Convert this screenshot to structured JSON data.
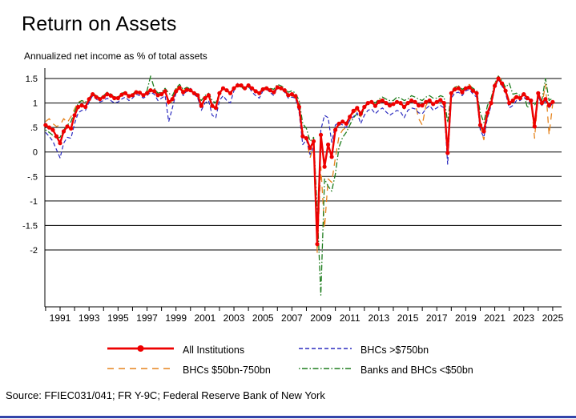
{
  "page": {
    "title": "Return on Assets",
    "subtitle": "Annualized net income as % of total assets",
    "source": "Source: FFIEC031/041; FR Y-9C; Federal Reserve Bank of New York",
    "footer_bar_color": "#3344aa"
  },
  "chart_data": {
    "type": "line",
    "title": "Return on Assets",
    "subtitle": "Annualized net income as % of total assets",
    "grid": "horizontal-black-lines",
    "legend_position": "bottom",
    "x_start": 1990.0,
    "x_step": 0.25,
    "x_axis": {
      "range": [
        1989.95,
        2025.65
      ],
      "tick_start": 1990,
      "tick_end": 2025,
      "label_years": [
        "1991",
        "1993",
        "1995",
        "1997",
        "1999",
        "2001",
        "2003",
        "2005",
        "2007",
        "2009",
        "2011",
        "2013",
        "2015",
        "2017",
        "2019",
        "2021",
        "2023",
        "2025"
      ]
    },
    "y_axis": {
      "unit": "% of total assets, annualized",
      "drawn_min": -3.15,
      "drawn_max": 1.71,
      "ticks": [
        {
          "v": 1.5,
          "label": "1.5"
        },
        {
          "v": 1.0,
          "label": "1"
        },
        {
          "v": 0.5,
          "label": ".5"
        },
        {
          "v": 0.0,
          "label": "0"
        },
        {
          "v": -0.5,
          "label": "-.5"
        },
        {
          "v": -1.0,
          "label": "-1"
        },
        {
          "v": -1.5,
          "label": "-1.5"
        },
        {
          "v": -2.0,
          "label": "-2"
        }
      ]
    },
    "series": [
      {
        "name": "All Institutions",
        "color": "#ee0000",
        "style": "solid-marker",
        "values": [
          0.55,
          0.5,
          0.45,
          0.32,
          0.18,
          0.42,
          0.52,
          0.48,
          0.75,
          0.92,
          0.95,
          0.92,
          1.08,
          1.18,
          1.12,
          1.08,
          1.12,
          1.18,
          1.15,
          1.1,
          1.1,
          1.17,
          1.2,
          1.14,
          1.16,
          1.22,
          1.21,
          1.16,
          1.2,
          1.26,
          1.24,
          1.16,
          1.18,
          1.24,
          1.02,
          1.08,
          1.24,
          1.31,
          1.22,
          1.27,
          1.26,
          1.2,
          1.16,
          0.94,
          1.1,
          1.16,
          0.94,
          0.9,
          1.2,
          1.3,
          1.26,
          1.2,
          1.3,
          1.36,
          1.36,
          1.3,
          1.36,
          1.3,
          1.24,
          1.2,
          1.28,
          1.3,
          1.26,
          1.22,
          1.32,
          1.3,
          1.26,
          1.16,
          1.18,
          1.14,
          0.92,
          0.32,
          0.28,
          0.08,
          0.22,
          -1.88,
          0.35,
          -0.3,
          0.15,
          -0.1,
          0.45,
          0.58,
          0.62,
          0.58,
          0.72,
          0.84,
          0.9,
          0.78,
          0.92,
          1.0,
          1.02,
          0.94,
          1.02,
          1.05,
          1.0,
          0.95,
          0.98,
          1.02,
          1.0,
          0.92,
          1.0,
          1.05,
          1.02,
          0.95,
          0.95,
          1.02,
          1.05,
          0.98,
          1.02,
          1.06,
          1.0,
          -0.02,
          1.2,
          1.28,
          1.3,
          1.22,
          1.3,
          1.32,
          1.25,
          1.2,
          0.55,
          0.42,
          0.8,
          1.0,
          1.35,
          1.5,
          1.4,
          1.25,
          1.0,
          1.05,
          1.12,
          1.1,
          1.18,
          1.1,
          1.05,
          0.52,
          1.2,
          1.0,
          1.08,
          0.95,
          1.02
        ]
      },
      {
        "name": "BHCs >$750bn",
        "color": "#2b2bbf",
        "style": "dashed",
        "values": [
          0.4,
          0.32,
          0.22,
          0.05,
          -0.12,
          0.18,
          0.3,
          0.28,
          0.58,
          0.8,
          0.85,
          0.85,
          1.02,
          1.15,
          1.08,
          1.02,
          1.05,
          1.1,
          1.05,
          1.0,
          1.02,
          1.08,
          1.12,
          1.05,
          1.1,
          1.18,
          1.15,
          1.1,
          1.15,
          1.22,
          1.18,
          1.05,
          1.1,
          1.15,
          0.62,
          0.9,
          1.2,
          1.35,
          1.15,
          1.25,
          1.3,
          1.18,
          1.1,
          0.85,
          1.0,
          1.05,
          0.75,
          0.7,
          1.05,
          1.15,
          1.05,
          1.0,
          1.25,
          1.4,
          1.35,
          1.3,
          1.35,
          1.22,
          1.15,
          1.1,
          1.25,
          1.28,
          1.22,
          1.15,
          1.32,
          1.3,
          1.22,
          1.1,
          1.12,
          1.1,
          0.8,
          0.15,
          0.25,
          -0.05,
          0.1,
          -1.55,
          0.45,
          0.75,
          0.7,
          0.2,
          0.55,
          0.6,
          0.55,
          0.5,
          0.65,
          0.72,
          0.8,
          0.58,
          0.75,
          0.85,
          0.88,
          0.78,
          0.85,
          0.9,
          0.82,
          0.75,
          0.8,
          0.85,
          0.82,
          0.7,
          0.85,
          0.9,
          0.88,
          0.8,
          0.78,
          0.88,
          0.95,
          0.85,
          0.9,
          0.95,
          0.9,
          -0.25,
          1.1,
          1.2,
          1.22,
          1.15,
          1.25,
          1.28,
          1.18,
          1.12,
          0.45,
          0.3,
          0.7,
          0.95,
          1.3,
          1.48,
          1.35,
          1.2,
          0.9,
          0.95,
          1.05,
          1.05,
          1.12,
          1.05,
          1.0,
          0.6,
          1.15,
          0.95,
          1.05,
          0.9,
          1.0
        ]
      },
      {
        "name": "BHCs $50bn-750bn",
        "color": "#e5831d",
        "style": "long-dash",
        "values": [
          0.62,
          0.68,
          0.58,
          0.52,
          0.55,
          0.68,
          0.6,
          0.72,
          0.88,
          1.02,
          1.05,
          1.0,
          1.1,
          1.2,
          1.12,
          1.08,
          1.15,
          1.2,
          1.15,
          1.08,
          1.1,
          1.18,
          1.22,
          1.12,
          1.18,
          1.25,
          1.22,
          1.15,
          1.22,
          1.3,
          1.25,
          1.15,
          1.2,
          1.25,
          0.95,
          1.05,
          1.28,
          1.35,
          1.25,
          1.3,
          1.28,
          1.2,
          1.15,
          0.9,
          1.08,
          1.15,
          0.92,
          0.88,
          1.18,
          1.3,
          1.25,
          1.18,
          1.3,
          1.38,
          1.35,
          1.3,
          1.38,
          1.3,
          1.22,
          1.18,
          1.28,
          1.32,
          1.28,
          1.22,
          1.32,
          1.3,
          1.25,
          1.12,
          1.15,
          1.1,
          0.85,
          0.42,
          0.3,
          -0.12,
          0.12,
          -2.05,
          -0.3,
          -1.55,
          -0.55,
          -0.62,
          -0.12,
          0.32,
          0.45,
          0.5,
          0.65,
          0.8,
          0.85,
          0.72,
          0.9,
          1.0,
          1.05,
          0.95,
          1.05,
          1.08,
          1.0,
          0.92,
          0.95,
          1.02,
          1.0,
          0.88,
          1.0,
          1.05,
          1.0,
          0.68,
          0.55,
          0.95,
          1.05,
          1.0,
          1.02,
          1.06,
          1.0,
          0.05,
          1.25,
          1.32,
          1.35,
          1.25,
          1.35,
          1.38,
          1.28,
          1.2,
          0.5,
          0.25,
          0.75,
          1.05,
          1.4,
          1.55,
          1.45,
          1.28,
          1.05,
          1.1,
          1.15,
          1.12,
          1.2,
          1.12,
          1.05,
          0.28,
          1.15,
          0.95,
          1.38,
          0.35,
          0.98
        ]
      },
      {
        "name": "Banks and BHCs <$50bn",
        "color": "#1e7d1e",
        "style": "dash-dot",
        "values": [
          0.45,
          0.4,
          0.34,
          0.28,
          0.3,
          0.45,
          0.55,
          0.62,
          0.82,
          1.0,
          1.05,
          1.02,
          1.1,
          1.2,
          1.15,
          1.1,
          1.15,
          1.22,
          1.18,
          1.12,
          1.12,
          1.2,
          1.22,
          1.15,
          1.18,
          1.25,
          1.22,
          1.15,
          1.25,
          1.55,
          1.3,
          1.2,
          1.22,
          1.3,
          1.2,
          1.15,
          1.3,
          1.38,
          1.28,
          1.32,
          1.28,
          1.22,
          1.18,
          1.05,
          1.15,
          1.2,
          1.05,
          1.0,
          1.2,
          1.3,
          1.25,
          1.2,
          1.3,
          1.35,
          1.32,
          1.28,
          1.32,
          1.28,
          1.25,
          1.22,
          1.3,
          1.32,
          1.3,
          1.28,
          1.38,
          1.35,
          1.3,
          1.22,
          1.25,
          1.2,
          1.05,
          0.58,
          0.48,
          0.22,
          0.3,
          -1.2,
          -2.92,
          -0.55,
          -0.7,
          -0.8,
          -0.45,
          0.1,
          0.3,
          0.4,
          0.55,
          0.7,
          0.78,
          0.72,
          0.9,
          1.0,
          1.05,
          1.0,
          1.08,
          1.12,
          1.08,
          1.05,
          1.05,
          1.12,
          1.1,
          1.05,
          1.08,
          1.15,
          1.12,
          1.08,
          1.05,
          1.12,
          1.15,
          1.1,
          1.1,
          1.15,
          1.12,
          0.6,
          1.22,
          1.32,
          1.35,
          1.28,
          1.32,
          1.35,
          1.3,
          1.25,
          0.8,
          0.6,
          0.95,
          1.1,
          1.4,
          1.55,
          1.45,
          1.32,
          1.4,
          1.18,
          1.2,
          1.15,
          1.2,
          0.9,
          1.05,
          0.95,
          1.1,
          1.05,
          1.5,
          1.05,
          1.1
        ]
      }
    ]
  }
}
